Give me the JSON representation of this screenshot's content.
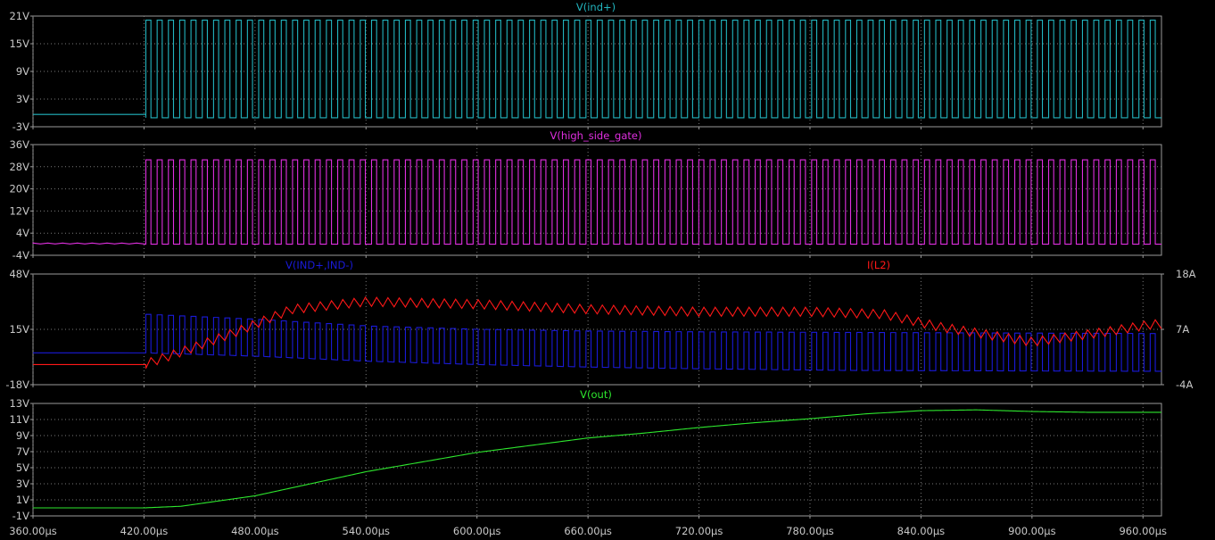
{
  "chart_data": [
    {
      "type": "line",
      "title": "V(ind+)",
      "ylim": [
        -3,
        24
      ],
      "y_ticks": [
        "21V",
        "15V",
        "9V",
        "3V",
        "-3V"
      ],
      "xlim": [
        360,
        970
      ],
      "x_unit": "µs",
      "colors": {
        "trace": "#22b5bf"
      },
      "series": [
        {
          "name": "V(ind+)",
          "description_points": [
            [
              360,
              0
            ],
            [
              421,
              0
            ],
            [
              421,
              23
            ],
            [
              970,
              23
            ]
          ],
          "pulse": {
            "start_us": 421,
            "low": -0.8,
            "high": 23
          }
        }
      ],
      "grid": true
    },
    {
      "type": "line",
      "title": "V(high_side_gate)",
      "ylim": [
        -4,
        36
      ],
      "y_ticks": [
        "36V",
        "28V",
        "20V",
        "12V",
        "4V",
        "-4V"
      ],
      "xlim": [
        360,
        970
      ],
      "colors": {
        "trace": "#e02fe0"
      },
      "series": [
        {
          "name": "V(high_side_gate)",
          "pulse": {
            "start_us": 421,
            "low": 0,
            "high": 30.5
          }
        }
      ],
      "grid": true
    },
    {
      "type": "line",
      "title_left": "V(IND+,IND-)",
      "title_right": "I(L2)",
      "ylim": [
        -18,
        48
      ],
      "y_ticks": [
        "48V",
        "15V",
        "-18V"
      ],
      "y2lim": [
        -4,
        18
      ],
      "y2_ticks": [
        "18A",
        "7A",
        "-4A"
      ],
      "xlim": [
        360,
        970
      ],
      "colors": {
        "voltage": "#1a1ad8",
        "current": "#ff1818"
      },
      "series": [
        {
          "name": "V(IND+,IND-)",
          "axis": "left",
          "high_points": [
            [
              420,
              24
            ],
            [
              480,
              21
            ],
            [
              540,
              17
            ],
            [
              600,
              15
            ],
            [
              660,
              14
            ],
            [
              720,
              13.5
            ],
            [
              840,
              13
            ],
            [
              965,
              12.5
            ]
          ],
          "low_points": [
            [
              360,
              1
            ],
            [
              420,
              1
            ],
            [
              480,
              -1
            ],
            [
              540,
              -4
            ],
            [
              600,
              -6
            ],
            [
              660,
              -7.5
            ],
            [
              720,
              -8.5
            ],
            [
              800,
              -9.5
            ],
            [
              965,
              -10
            ]
          ]
        },
        {
          "name": "I(L2)",
          "axis": "right",
          "points": [
            [
              360,
              0
            ],
            [
              420,
              0
            ],
            [
              440,
              2.5
            ],
            [
              470,
              6.5
            ],
            [
              500,
              11
            ],
            [
              540,
              12.5
            ],
            [
              600,
              12
            ],
            [
              660,
              11
            ],
            [
              720,
              10.5
            ],
            [
              780,
              10.5
            ],
            [
              820,
              10
            ],
            [
              850,
              7.5
            ],
            [
              900,
              4.5
            ],
            [
              940,
              6.5
            ],
            [
              965,
              8
            ]
          ],
          "ripple": 1.8
        }
      ],
      "grid": true
    },
    {
      "type": "line",
      "title": "V(out)",
      "ylim": [
        -1,
        13
      ],
      "y_ticks": [
        "13V",
        "11V",
        "9V",
        "7V",
        "5V",
        "3V",
        "1V",
        "-1V"
      ],
      "xlim": [
        360,
        970
      ],
      "x_ticks": [
        "360.00µs",
        "420.00µs",
        "480.00µs",
        "540.00µs",
        "600.00µs",
        "660.00µs",
        "720.00µs",
        "780.00µs",
        "840.00µs",
        "900.00µs",
        "960.00µs"
      ],
      "colors": {
        "trace": "#2ee82e"
      },
      "series": [
        {
          "name": "V(out)",
          "points": [
            [
              360,
              0
            ],
            [
              420,
              0
            ],
            [
              440,
              0.2
            ],
            [
              480,
              1.5
            ],
            [
              510,
              3
            ],
            [
              540,
              4.5
            ],
            [
              570,
              5.7
            ],
            [
              600,
              6.9
            ],
            [
              630,
              7.8
            ],
            [
              660,
              8.7
            ],
            [
              690,
              9.3
            ],
            [
              720,
              10
            ],
            [
              750,
              10.6
            ],
            [
              780,
              11.1
            ],
            [
              810,
              11.7
            ],
            [
              840,
              12.1
            ],
            [
              870,
              12.2
            ],
            [
              900,
              12
            ],
            [
              930,
              11.9
            ],
            [
              970,
              11.9
            ]
          ]
        }
      ],
      "grid": true
    }
  ],
  "labels": {
    "p1_title": "V(ind+)",
    "p2_title": "V(high_side_gate)",
    "p3_title_left": "V(IND+,IND-)",
    "p3_title_right": "I(L2)",
    "p4_title": "V(out)"
  }
}
